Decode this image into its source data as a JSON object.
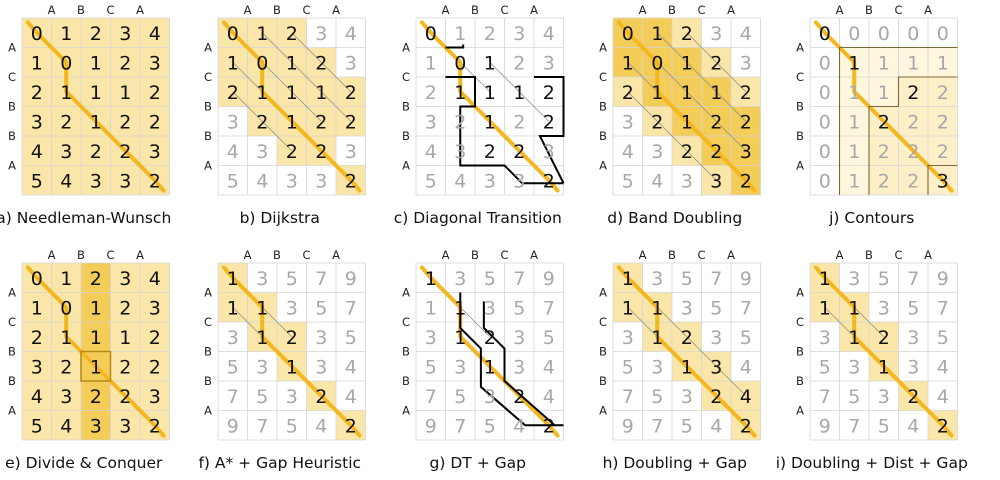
{
  "column_header": [
    "A",
    "B",
    "C",
    "A"
  ],
  "row_header": [
    "A",
    "C",
    "B",
    "B",
    "A"
  ],
  "colors": {
    "fill": "#fbe6a9",
    "fill_dark": "#f4cc58",
    "path": "#f3b71f",
    "grid": "#d5d5d5",
    "text": "#111111",
    "faded_text": "#a8a8a8",
    "border": "#000000"
  },
  "panels": [
    {
      "caption": "a) Needleman-Wunsch",
      "values": [
        [
          0,
          1,
          2,
          3,
          4
        ],
        [
          1,
          0,
          1,
          2,
          3
        ],
        [
          2,
          1,
          1,
          1,
          2
        ],
        [
          3,
          2,
          1,
          2,
          2
        ],
        [
          4,
          3,
          2,
          2,
          3
        ],
        [
          5,
          4,
          3,
          3,
          2
        ]
      ],
      "dark": [
        [
          0,
          0,
          0,
          0,
          0
        ],
        [
          0,
          0,
          0,
          0,
          0
        ],
        [
          0,
          0,
          0,
          0,
          0
        ],
        [
          0,
          0,
          0,
          0,
          0
        ],
        [
          0,
          0,
          0,
          0,
          0
        ],
        [
          0,
          0,
          0,
          0,
          0
        ]
      ],
      "explored": [
        [
          1,
          1,
          1,
          1,
          1
        ],
        [
          1,
          1,
          1,
          1,
          1
        ],
        [
          1,
          1,
          1,
          1,
          1
        ],
        [
          1,
          1,
          1,
          1,
          1
        ],
        [
          1,
          1,
          1,
          1,
          1
        ],
        [
          1,
          1,
          1,
          1,
          1
        ]
      ],
      "fill": "full"
    },
    {
      "caption": "b) Dijkstra",
      "values": [
        [
          0,
          1,
          2,
          3,
          4
        ],
        [
          1,
          0,
          1,
          2,
          3
        ],
        [
          2,
          1,
          1,
          1,
          2
        ],
        [
          3,
          2,
          1,
          2,
          2
        ],
        [
          4,
          3,
          2,
          2,
          3
        ],
        [
          5,
          4,
          3,
          3,
          2
        ]
      ],
      "explored": [
        [
          1,
          1,
          1,
          0,
          0
        ],
        [
          1,
          1,
          1,
          1,
          0
        ],
        [
          1,
          1,
          1,
          1,
          1
        ],
        [
          0,
          1,
          1,
          1,
          1
        ],
        [
          0,
          0,
          1,
          1,
          0
        ],
        [
          0,
          0,
          0,
          0,
          1
        ]
      ],
      "fill": "explored"
    },
    {
      "caption": "c) Diagonal Transition",
      "values": [
        [
          0,
          1,
          2,
          3,
          4
        ],
        [
          1,
          0,
          1,
          2,
          3
        ],
        [
          2,
          1,
          1,
          1,
          2
        ],
        [
          3,
          2,
          1,
          2,
          2
        ],
        [
          4,
          3,
          2,
          2,
          3
        ],
        [
          5,
          4,
          3,
          3,
          2
        ]
      ],
      "explored": [
        [
          1,
          0,
          0,
          0,
          0
        ],
        [
          0,
          1,
          1,
          0,
          0
        ],
        [
          0,
          1,
          1,
          1,
          1
        ],
        [
          0,
          0,
          1,
          0,
          1
        ],
        [
          0,
          0,
          1,
          1,
          0
        ],
        [
          0,
          0,
          0,
          0,
          1
        ]
      ],
      "fill": "none"
    },
    {
      "caption": "d) Band Doubling",
      "values": [
        [
          0,
          1,
          2,
          3,
          4
        ],
        [
          1,
          0,
          1,
          2,
          3
        ],
        [
          2,
          1,
          1,
          1,
          2
        ],
        [
          3,
          2,
          1,
          2,
          2
        ],
        [
          4,
          3,
          2,
          2,
          3
        ],
        [
          5,
          4,
          3,
          3,
          2
        ]
      ],
      "explored": [
        [
          1,
          1,
          1,
          0,
          0
        ],
        [
          1,
          1,
          1,
          1,
          0
        ],
        [
          1,
          1,
          1,
          1,
          1
        ],
        [
          0,
          1,
          1,
          1,
          1
        ],
        [
          0,
          0,
          1,
          1,
          1
        ],
        [
          0,
          0,
          0,
          1,
          1
        ]
      ],
      "fill": "band"
    },
    {
      "caption": "j) Contours",
      "values": [
        [
          0,
          0,
          0,
          0,
          0
        ],
        [
          0,
          1,
          1,
          1,
          1
        ],
        [
          0,
          1,
          1,
          2,
          2
        ],
        [
          0,
          1,
          2,
          2,
          2
        ],
        [
          0,
          1,
          2,
          2,
          2
        ],
        [
          0,
          1,
          2,
          2,
          3
        ]
      ],
      "explored": [
        [
          1,
          0,
          0,
          0,
          0
        ],
        [
          0,
          1,
          0,
          0,
          0
        ],
        [
          0,
          0,
          0,
          1,
          0
        ],
        [
          0,
          0,
          1,
          0,
          0
        ],
        [
          0,
          0,
          0,
          0,
          0
        ],
        [
          0,
          0,
          0,
          0,
          1
        ]
      ],
      "fill": "contours"
    },
    {
      "caption": "e) Divide & Conquer",
      "values": [
        [
          0,
          1,
          2,
          3,
          4
        ],
        [
          1,
          0,
          1,
          2,
          3
        ],
        [
          2,
          1,
          1,
          1,
          2
        ],
        [
          3,
          2,
          1,
          2,
          2
        ],
        [
          4,
          3,
          2,
          2,
          3
        ],
        [
          5,
          4,
          3,
          3,
          2
        ]
      ],
      "explored": [
        [
          1,
          1,
          1,
          1,
          1
        ],
        [
          1,
          1,
          1,
          1,
          1
        ],
        [
          1,
          1,
          1,
          1,
          1
        ],
        [
          1,
          1,
          1,
          1,
          1
        ],
        [
          1,
          1,
          1,
          1,
          1
        ],
        [
          1,
          1,
          1,
          1,
          1
        ]
      ],
      "fill": "divide"
    },
    {
      "caption": "f) A* + Gap Heuristic",
      "values": [
        [
          1,
          3,
          5,
          7,
          9
        ],
        [
          1,
          1,
          3,
          5,
          7
        ],
        [
          3,
          1,
          2,
          3,
          5
        ],
        [
          5,
          3,
          1,
          3,
          4
        ],
        [
          7,
          5,
          3,
          2,
          4
        ],
        [
          9,
          7,
          5,
          4,
          2
        ]
      ],
      "explored": [
        [
          1,
          0,
          0,
          0,
          0
        ],
        [
          1,
          1,
          0,
          0,
          0
        ],
        [
          0,
          1,
          1,
          0,
          0
        ],
        [
          0,
          0,
          1,
          0,
          0
        ],
        [
          0,
          0,
          0,
          1,
          0
        ],
        [
          0,
          0,
          0,
          0,
          1
        ]
      ],
      "fill": "explored"
    },
    {
      "caption": "g) DT + Gap",
      "values": [
        [
          1,
          3,
          5,
          7,
          9
        ],
        [
          1,
          1,
          3,
          5,
          7
        ],
        [
          3,
          1,
          2,
          3,
          5
        ],
        [
          5,
          3,
          1,
          3,
          4
        ],
        [
          7,
          5,
          3,
          2,
          4
        ],
        [
          9,
          7,
          5,
          4,
          2
        ]
      ],
      "explored": [
        [
          1,
          0,
          0,
          0,
          0
        ],
        [
          0,
          1,
          0,
          0,
          0
        ],
        [
          0,
          1,
          1,
          0,
          0
        ],
        [
          0,
          0,
          1,
          0,
          0
        ],
        [
          0,
          0,
          0,
          1,
          0
        ],
        [
          0,
          0,
          0,
          0,
          1
        ]
      ],
      "fill": "none"
    },
    {
      "caption": "h) Doubling + Gap",
      "values": [
        [
          1,
          3,
          5,
          7,
          9
        ],
        [
          1,
          1,
          3,
          5,
          7
        ],
        [
          3,
          1,
          2,
          3,
          5
        ],
        [
          5,
          3,
          1,
          3,
          4
        ],
        [
          7,
          5,
          3,
          2,
          4
        ],
        [
          9,
          7,
          5,
          4,
          2
        ]
      ],
      "explored": [
        [
          1,
          0,
          0,
          0,
          0
        ],
        [
          1,
          1,
          0,
          0,
          0
        ],
        [
          0,
          1,
          1,
          0,
          0
        ],
        [
          0,
          0,
          1,
          1,
          0
        ],
        [
          0,
          0,
          0,
          1,
          1
        ],
        [
          0,
          0,
          0,
          0,
          1
        ]
      ],
      "fill": "band2"
    },
    {
      "caption": "i) Doubling + Dist + Gap",
      "values": [
        [
          1,
          3,
          5,
          7,
          9
        ],
        [
          1,
          1,
          3,
          5,
          7
        ],
        [
          3,
          1,
          2,
          3,
          5
        ],
        [
          5,
          3,
          1,
          3,
          4
        ],
        [
          7,
          5,
          3,
          2,
          4
        ],
        [
          9,
          7,
          5,
          4,
          2
        ]
      ],
      "explored": [
        [
          1,
          0,
          0,
          0,
          0
        ],
        [
          1,
          1,
          0,
          0,
          0
        ],
        [
          0,
          1,
          1,
          0,
          0
        ],
        [
          0,
          0,
          1,
          0,
          0
        ],
        [
          0,
          0,
          0,
          1,
          0
        ],
        [
          0,
          0,
          0,
          0,
          1
        ]
      ],
      "fill": "band2"
    }
  ],
  "path": [
    [
      0,
      0
    ],
    [
      1,
      1
    ],
    [
      2,
      1
    ],
    [
      3,
      2
    ],
    [
      4,
      3
    ],
    [
      5,
      4
    ]
  ]
}
